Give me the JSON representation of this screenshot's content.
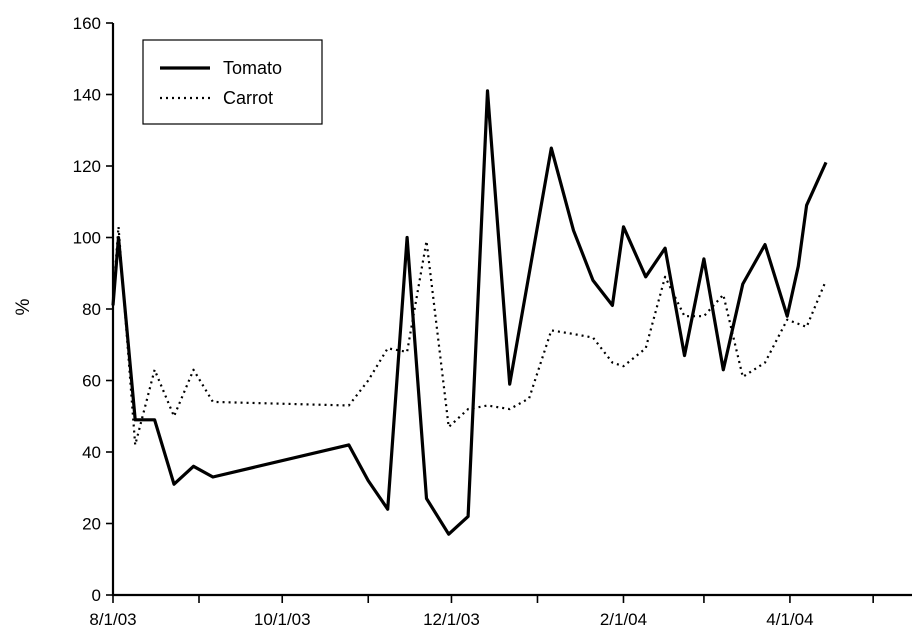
{
  "chart_data": {
    "type": "line",
    "title": "",
    "xlabel": "",
    "ylabel": "%",
    "ylim": [
      0,
      160
    ],
    "yticks": [
      0,
      20,
      40,
      60,
      80,
      100,
      120,
      140,
      160
    ],
    "xlim": [
      "2003-08-01",
      "2004-05-15"
    ],
    "xticks": [
      {
        "date": "2003-08-01",
        "label": "8/1/03"
      },
      {
        "date": "2003-10-01",
        "label": "10/1/03"
      },
      {
        "date": "2003-12-01",
        "label": "12/1/03"
      },
      {
        "date": "2004-02-01",
        "label": "2/1/04"
      },
      {
        "date": "2004-04-01",
        "label": "4/1/04"
      }
    ],
    "grid": false,
    "legend_position": "top-left",
    "series": [
      {
        "name": "Tomato",
        "line_style": "solid",
        "color": "#000000",
        "points": [
          [
            "2003-08-01",
            81
          ],
          [
            "2003-08-03",
            100
          ],
          [
            "2003-08-09",
            49
          ],
          [
            "2003-08-16",
            49
          ],
          [
            "2003-08-23",
            31
          ],
          [
            "2003-08-30",
            36
          ],
          [
            "2003-09-06",
            33
          ],
          [
            "2003-10-25",
            42
          ],
          [
            "2003-11-01",
            32
          ],
          [
            "2003-11-08",
            24
          ],
          [
            "2003-11-15",
            100
          ],
          [
            "2003-11-22",
            27
          ],
          [
            "2003-11-30",
            17
          ],
          [
            "2003-12-07",
            22
          ],
          [
            "2003-12-14",
            141
          ],
          [
            "2003-12-22",
            59
          ],
          [
            "2004-01-06",
            125
          ],
          [
            "2004-01-14",
            102
          ],
          [
            "2004-01-21",
            88
          ],
          [
            "2004-01-28",
            81
          ],
          [
            "2004-02-01",
            103
          ],
          [
            "2004-02-09",
            89
          ],
          [
            "2004-02-16",
            97
          ],
          [
            "2004-02-23",
            67
          ],
          [
            "2004-03-01",
            94
          ],
          [
            "2004-03-08",
            63
          ],
          [
            "2004-03-15",
            87
          ],
          [
            "2004-03-23",
            98
          ],
          [
            "2004-03-31",
            78
          ],
          [
            "2004-04-04",
            92
          ],
          [
            "2004-04-07",
            109
          ],
          [
            "2004-04-14",
            121
          ]
        ]
      },
      {
        "name": "Carrot",
        "line_style": "dotted",
        "color": "#000000",
        "points": [
          [
            "2003-08-01",
            83
          ],
          [
            "2003-08-03",
            103
          ],
          [
            "2003-08-09",
            42
          ],
          [
            "2003-08-16",
            63
          ],
          [
            "2003-08-23",
            50
          ],
          [
            "2003-08-30",
            63
          ],
          [
            "2003-09-06",
            54
          ],
          [
            "2003-10-25",
            53
          ],
          [
            "2003-11-01",
            60
          ],
          [
            "2003-11-08",
            69
          ],
          [
            "2003-11-15",
            68
          ],
          [
            "2003-11-22",
            99
          ],
          [
            "2003-11-30",
            47
          ],
          [
            "2003-12-07",
            52
          ],
          [
            "2003-12-14",
            53
          ],
          [
            "2003-12-22",
            52
          ],
          [
            "2003-12-29",
            55
          ],
          [
            "2004-01-06",
            74
          ],
          [
            "2004-01-14",
            73
          ],
          [
            "2004-01-21",
            72
          ],
          [
            "2004-01-28",
            65
          ],
          [
            "2004-02-01",
            64
          ],
          [
            "2004-02-09",
            69
          ],
          [
            "2004-02-16",
            89
          ],
          [
            "2004-02-23",
            78
          ],
          [
            "2004-03-01",
            78
          ],
          [
            "2004-03-08",
            84
          ],
          [
            "2004-03-15",
            61
          ],
          [
            "2004-03-23",
            65
          ],
          [
            "2004-03-31",
            77
          ],
          [
            "2004-04-07",
            75
          ],
          [
            "2004-04-14",
            88
          ]
        ]
      }
    ]
  }
}
